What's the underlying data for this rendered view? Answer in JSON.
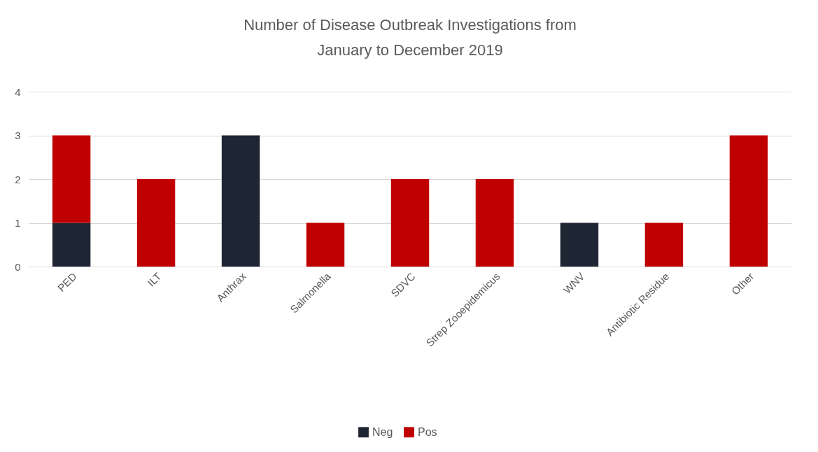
{
  "chart_data": {
    "type": "bar",
    "title": "Number of Disease Outbreak Investigations from\nJanuary to December 2019",
    "stacked": true,
    "categories": [
      "PED",
      "ILT",
      "Anthrax",
      "Salmonella",
      "SDVC",
      "Strep Zooepidemicus",
      "WNV",
      "Antibiotic Residue",
      "Other"
    ],
    "series": [
      {
        "name": "Neg",
        "color": "#1f2633",
        "values": [
          1,
          null,
          3,
          null,
          null,
          null,
          1,
          null,
          null
        ]
      },
      {
        "name": "Pos",
        "color": "#c00000",
        "values": [
          2,
          2,
          null,
          1,
          2,
          2,
          null,
          1,
          3
        ]
      }
    ],
    "ylim": [
      0,
      4
    ],
    "yticks": [
      0,
      1,
      2,
      3,
      4
    ],
    "grid": "y",
    "legend": "bottom"
  }
}
